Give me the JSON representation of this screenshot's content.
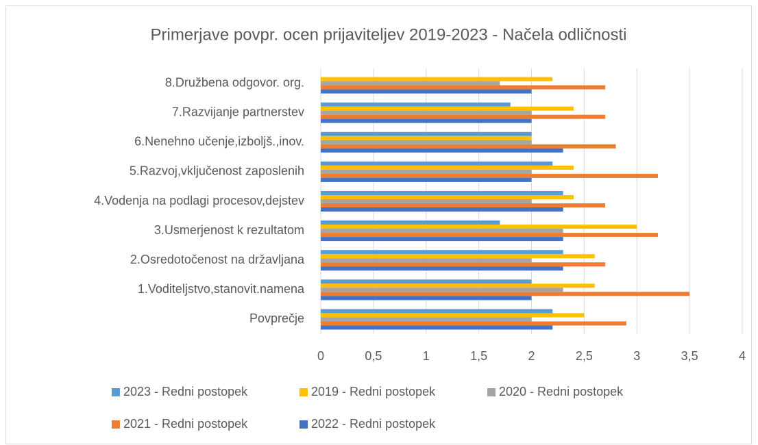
{
  "chart_data": {
    "type": "hbar",
    "title": "Primerjave povpr. ocen prijaviteljev  2019-2023 - Načela odličnosti",
    "categories": [
      "Povprečje",
      "1.Voditeljstvo,stanovit.namena",
      "2.Osredotočenost na državljana",
      "3.Usmerjenost k rezultatom",
      "4.Vodenja na podlagi procesov,dejstev",
      "5.Razvoj,vključenost zaposlenih",
      "6.Nenehno učenje,izboljš.,inov.",
      "7.Razvijanje partnerstev",
      "8.Družbena odgovor. org."
    ],
    "series": [
      {
        "name": "2023 - Redni postopek",
        "color": "#5b9bd5",
        "values": [
          2.2,
          2.0,
          2.3,
          1.7,
          2.3,
          2.2,
          2.0,
          1.8,
          0
        ]
      },
      {
        "name": "2019 - Redni postopek",
        "color": "#ffc000",
        "values": [
          2.5,
          2.6,
          2.6,
          3.0,
          2.4,
          2.4,
          2.0,
          2.4,
          2.2
        ]
      },
      {
        "name": "2020 - Redni postopek",
        "color": "#a5a5a5",
        "values": [
          2.0,
          2.3,
          2.0,
          2.3,
          2.0,
          2.0,
          2.0,
          2.0,
          1.7
        ]
      },
      {
        "name": "2021 - Redni postopek",
        "color": "#ed7d31",
        "values": [
          2.9,
          3.5,
          2.7,
          3.2,
          2.7,
          3.2,
          2.8,
          2.7,
          2.7
        ]
      },
      {
        "name": "2022 - Redni postopek",
        "color": "#4472c4",
        "values": [
          2.2,
          2.0,
          2.3,
          2.3,
          2.3,
          2.0,
          2.3,
          2.0,
          2.0
        ]
      }
    ],
    "xlim": [
      0,
      4
    ],
    "xticks": [
      0,
      {
        "value": 0.5,
        "label": "0,5"
      },
      1,
      {
        "value": 1.5,
        "label": "1,5"
      },
      2,
      {
        "value": 2.5,
        "label": "2,5"
      },
      3,
      {
        "value": 3.5,
        "label": "3,5"
      },
      4
    ],
    "grid": true
  }
}
